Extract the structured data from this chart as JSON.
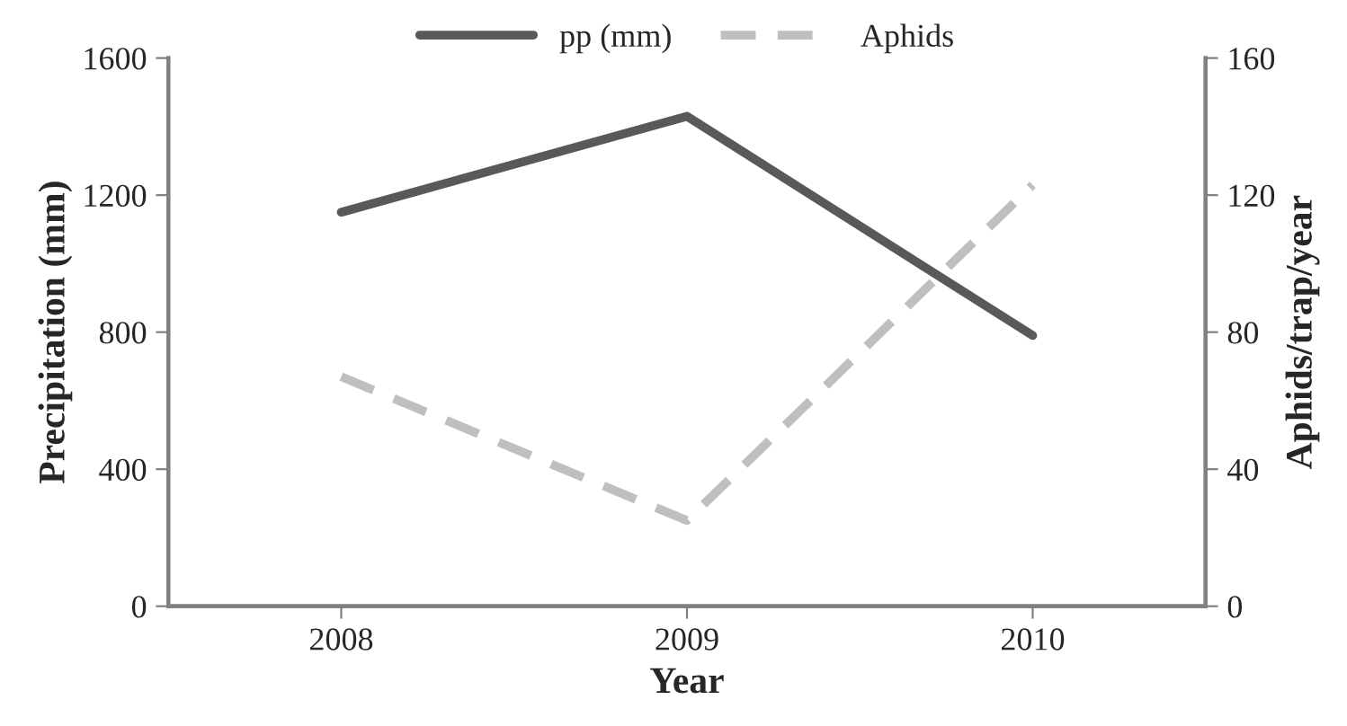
{
  "chart_data": {
    "type": "line",
    "xlabel": "Year",
    "ylabel": "Precipitation (mm)",
    "y2label": "Aphids/trap/year",
    "categories": [
      "2008",
      "2009",
      "2010"
    ],
    "series": [
      {
        "name": "pp (mm)",
        "color": "#595959",
        "values": [
          1150,
          1430,
          790
        ],
        "line_style": "solid"
      },
      {
        "name": "Aphids",
        "color": "#bfbfbf",
        "values": [
          67,
          25,
          123
        ],
        "axis": "y2",
        "line_style": "dashed"
      }
    ],
    "ylim": [
      0,
      1600
    ],
    "yticks": [
      0,
      400,
      800,
      1200,
      1600
    ],
    "y2lim": [
      0,
      160
    ],
    "y2ticks": [
      0,
      40,
      80,
      120,
      160
    ],
    "grid": false,
    "legend": "top",
    "marker": "none"
  }
}
